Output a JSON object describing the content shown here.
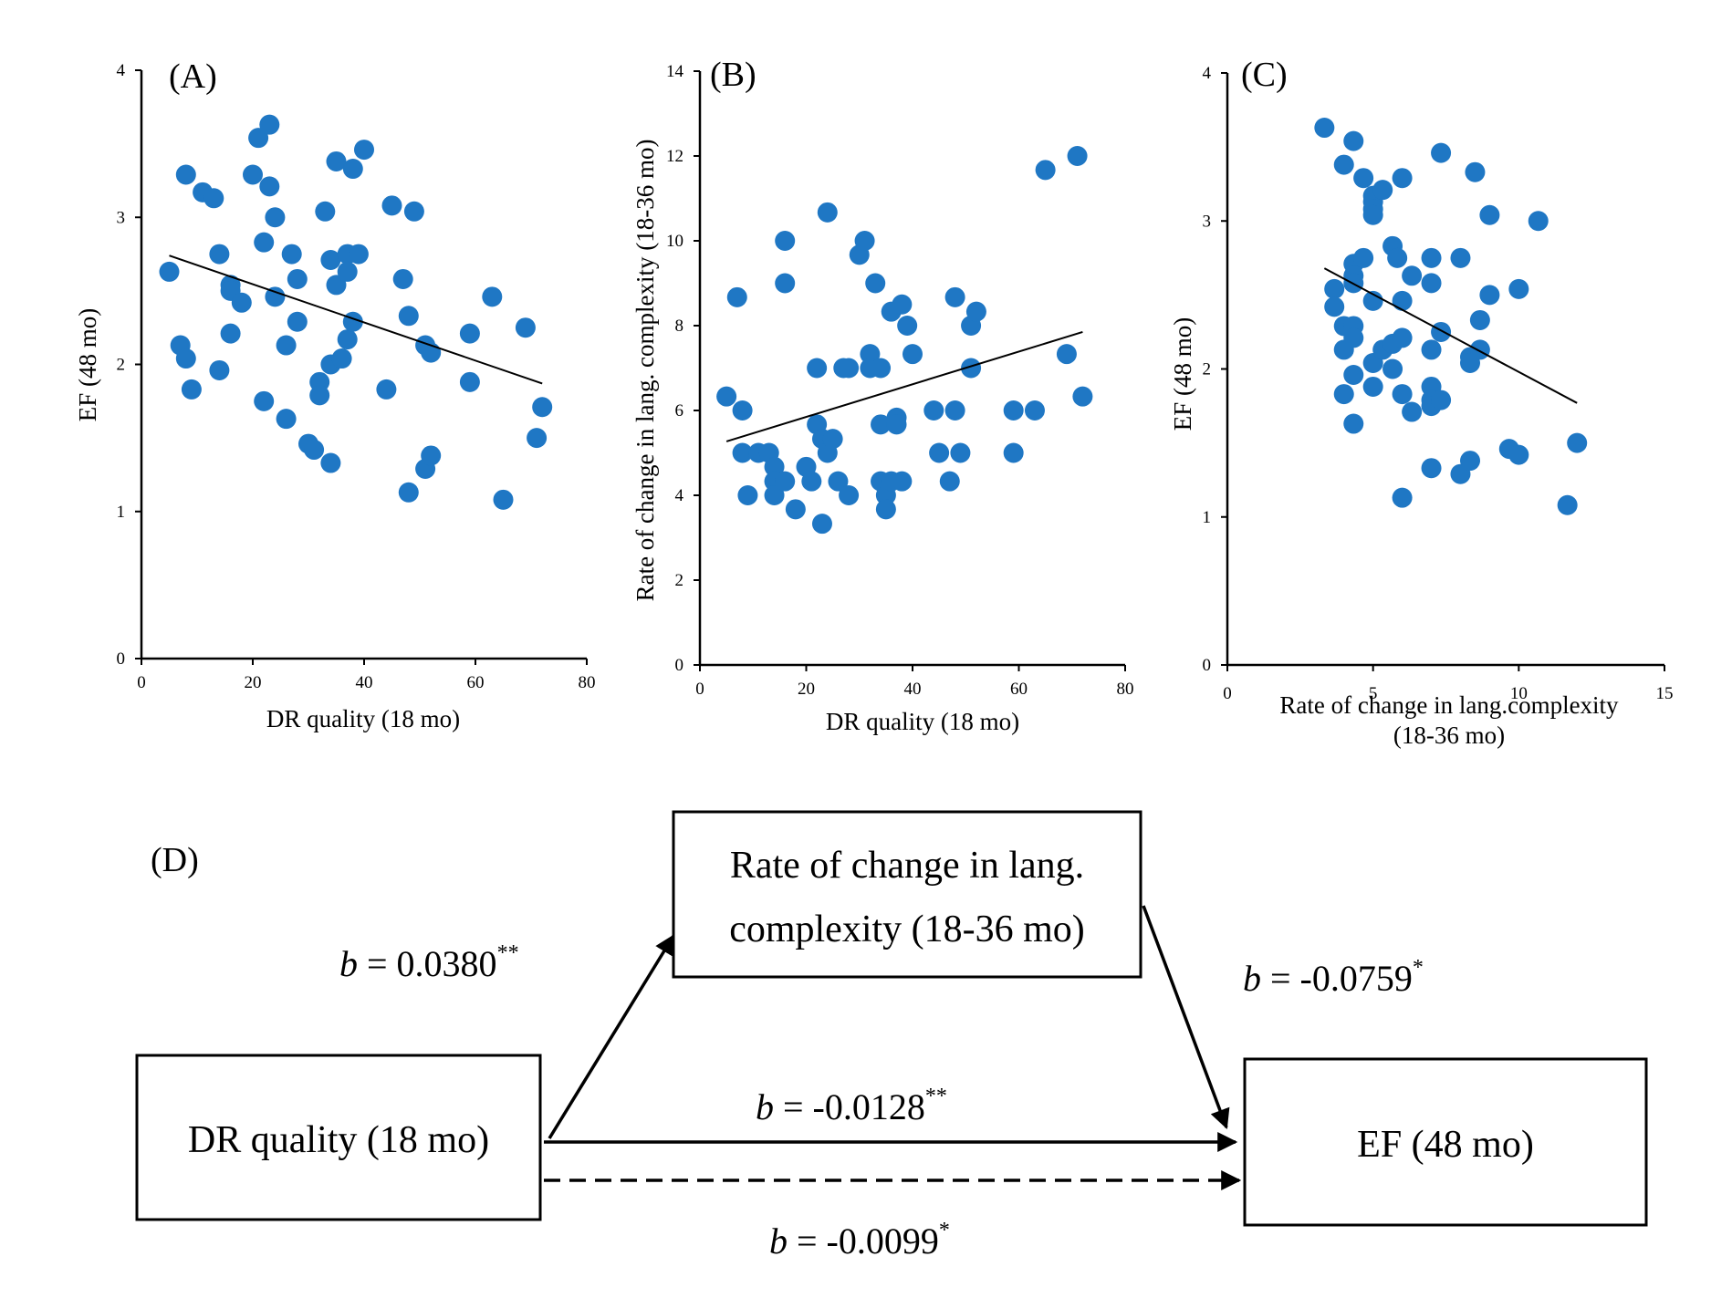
{
  "chart_data": [
    {
      "panel": "(A)",
      "type": "scatter",
      "xlabel": "DR quality (18 mo)",
      "ylabel": "EF (48 mo)",
      "xlim": [
        0,
        80
      ],
      "ylim": [
        0,
        4
      ],
      "xticks": [
        0,
        20,
        40,
        60,
        80
      ],
      "yticks": [
        0,
        1,
        2,
        3,
        4
      ],
      "grid": false,
      "point_color": "#1f77c4",
      "trendline": [
        [
          5,
          2.74
        ],
        [
          72,
          1.87
        ]
      ],
      "points": [
        [
          5,
          2.63
        ],
        [
          7,
          2.13
        ],
        [
          8,
          3.29
        ],
        [
          8,
          2.04
        ],
        [
          9,
          1.83
        ],
        [
          11,
          3.17
        ],
        [
          13,
          3.13
        ],
        [
          14,
          2.75
        ],
        [
          14,
          1.96
        ],
        [
          16,
          2.54
        ],
        [
          16,
          2.5
        ],
        [
          16,
          2.21
        ],
        [
          18,
          2.42
        ],
        [
          20,
          3.29
        ],
        [
          21,
          3.54
        ],
        [
          22,
          2.83
        ],
        [
          22,
          1.75
        ],
        [
          23,
          3.63
        ],
        [
          23,
          3.21
        ],
        [
          24,
          3.0
        ],
        [
          24,
          2.46
        ],
        [
          26,
          2.13
        ],
        [
          26,
          1.63
        ],
        [
          27,
          2.75
        ],
        [
          28,
          2.58
        ],
        [
          28,
          2.29
        ],
        [
          30,
          1.46
        ],
        [
          31,
          1.42
        ],
        [
          32,
          1.88
        ],
        [
          32,
          1.79
        ],
        [
          33,
          3.04
        ],
        [
          34,
          2.71
        ],
        [
          34,
          2.0
        ],
        [
          34,
          1.33
        ],
        [
          35,
          3.38
        ],
        [
          35,
          2.54
        ],
        [
          36,
          2.04
        ],
        [
          37,
          2.75
        ],
        [
          37,
          2.63
        ],
        [
          37,
          2.17
        ],
        [
          38,
          3.33
        ],
        [
          38,
          2.29
        ],
        [
          39,
          2.75
        ],
        [
          40,
          3.46
        ],
        [
          44,
          1.83
        ],
        [
          45,
          3.08
        ],
        [
          47,
          2.58
        ],
        [
          48,
          2.33
        ],
        [
          48,
          1.13
        ],
        [
          49,
          3.04
        ],
        [
          51,
          2.13
        ],
        [
          51,
          1.29
        ],
        [
          52,
          2.08
        ],
        [
          52,
          1.38
        ],
        [
          59,
          2.21
        ],
        [
          59,
          1.88
        ],
        [
          63,
          2.46
        ],
        [
          65,
          1.08
        ],
        [
          69,
          2.25
        ],
        [
          71,
          1.5
        ],
        [
          72,
          1.71
        ]
      ]
    },
    {
      "panel": "(B)",
      "type": "scatter",
      "xlabel": "DR quality (18 mo)",
      "ylabel": "Rate of change in lang. complexity (18-36 mo)",
      "xlim": [
        0,
        80
      ],
      "ylim": [
        0,
        14
      ],
      "xticks": [
        0,
        20,
        40,
        60,
        80
      ],
      "yticks": [
        0,
        2,
        4,
        6,
        8,
        10,
        12,
        14
      ],
      "grid": false,
      "point_color": "#1f77c4",
      "trendline": [
        [
          5,
          5.27
        ],
        [
          72,
          7.85
        ]
      ],
      "points": [
        [
          5,
          6.33
        ],
        [
          7,
          8.67
        ],
        [
          8,
          6.0
        ],
        [
          8,
          5.0
        ],
        [
          9,
          4.0
        ],
        [
          11,
          5.0
        ],
        [
          13,
          5.0
        ],
        [
          14,
          4.67
        ],
        [
          14,
          4.33
        ],
        [
          14,
          4.0
        ],
        [
          16,
          10.0
        ],
        [
          16,
          9.0
        ],
        [
          16,
          4.33
        ],
        [
          18,
          3.67
        ],
        [
          20,
          4.67
        ],
        [
          21,
          4.33
        ],
        [
          22,
          7.0
        ],
        [
          22,
          5.67
        ],
        [
          23,
          5.33
        ],
        [
          23,
          3.33
        ],
        [
          24,
          10.67
        ],
        [
          24,
          5.0
        ],
        [
          25,
          5.33
        ],
        [
          26,
          4.33
        ],
        [
          27,
          7.0
        ],
        [
          28,
          7.0
        ],
        [
          28,
          4.0
        ],
        [
          30,
          9.67
        ],
        [
          31,
          10.0
        ],
        [
          32,
          7.33
        ],
        [
          32,
          7.0
        ],
        [
          33,
          9.0
        ],
        [
          34,
          7.0
        ],
        [
          34,
          5.67
        ],
        [
          34,
          4.33
        ],
        [
          35,
          4.0
        ],
        [
          35,
          3.67
        ],
        [
          36,
          8.33
        ],
        [
          36,
          4.33
        ],
        [
          37,
          5.83
        ],
        [
          37,
          5.67
        ],
        [
          38,
          8.5
        ],
        [
          38,
          4.33
        ],
        [
          39,
          8.0
        ],
        [
          40,
          7.33
        ],
        [
          44,
          6.0
        ],
        [
          45,
          5.0
        ],
        [
          47,
          4.33
        ],
        [
          48,
          8.67
        ],
        [
          48,
          6.0
        ],
        [
          49,
          5.0
        ],
        [
          51,
          8.0
        ],
        [
          51,
          7.0
        ],
        [
          52,
          8.33
        ],
        [
          59,
          6.0
        ],
        [
          59,
          5.0
        ],
        [
          63,
          6.0
        ],
        [
          65,
          11.67
        ],
        [
          69,
          7.33
        ],
        [
          71,
          12.0
        ],
        [
          72,
          6.33
        ]
      ]
    },
    {
      "panel": "(C)",
      "type": "scatter",
      "xlabel": "Rate of change in lang.complexity (18-36 mo)",
      "ylabel": "EF (48 mo)",
      "xlim": [
        0,
        15
      ],
      "ylim": [
        0,
        4
      ],
      "xticks": [
        0,
        5,
        10,
        15
      ],
      "yticks": [
        0,
        1,
        2,
        3,
        4
      ],
      "grid": false,
      "point_color": "#1f77c4",
      "trendline": [
        [
          3.33,
          2.68
        ],
        [
          12,
          1.77
        ]
      ],
      "points": [
        [
          3.33,
          3.63
        ],
        [
          3.67,
          2.54
        ],
        [
          3.67,
          2.42
        ],
        [
          4.0,
          3.38
        ],
        [
          4.0,
          2.29
        ],
        [
          4.0,
          2.13
        ],
        [
          4.0,
          1.83
        ],
        [
          4.33,
          3.54
        ],
        [
          4.33,
          2.71
        ],
        [
          4.33,
          2.63
        ],
        [
          4.33,
          2.58
        ],
        [
          4.33,
          2.29
        ],
        [
          4.33,
          2.21
        ],
        [
          4.33,
          1.96
        ],
        [
          4.33,
          1.63
        ],
        [
          4.67,
          3.29
        ],
        [
          4.67,
          2.75
        ],
        [
          5.0,
          3.17
        ],
        [
          5.0,
          3.13
        ],
        [
          5.0,
          3.08
        ],
        [
          5.0,
          3.04
        ],
        [
          5.0,
          2.46
        ],
        [
          5.0,
          2.04
        ],
        [
          5.0,
          1.88
        ],
        [
          5.33,
          3.21
        ],
        [
          5.33,
          2.13
        ],
        [
          5.67,
          2.83
        ],
        [
          5.67,
          2.17
        ],
        [
          5.67,
          2.0
        ],
        [
          5.83,
          2.75
        ],
        [
          6.0,
          3.29
        ],
        [
          6.0,
          2.46
        ],
        [
          6.0,
          2.21
        ],
        [
          6.0,
          1.83
        ],
        [
          6.0,
          1.13
        ],
        [
          6.33,
          1.71
        ],
        [
          6.33,
          2.63
        ],
        [
          7.0,
          2.75
        ],
        [
          7.0,
          2.58
        ],
        [
          7.0,
          2.13
        ],
        [
          7.0,
          1.88
        ],
        [
          7.0,
          1.79
        ],
        [
          7.0,
          1.75
        ],
        [
          7.0,
          1.33
        ],
        [
          7.33,
          3.46
        ],
        [
          7.33,
          2.25
        ],
        [
          7.33,
          1.79
        ],
        [
          8.0,
          2.75
        ],
        [
          8.0,
          1.29
        ],
        [
          8.33,
          2.08
        ],
        [
          8.33,
          2.04
        ],
        [
          8.33,
          1.38
        ],
        [
          8.5,
          3.33
        ],
        [
          8.67,
          2.33
        ],
        [
          8.67,
          2.13
        ],
        [
          9.0,
          3.04
        ],
        [
          9.0,
          2.5
        ],
        [
          9.67,
          1.46
        ],
        [
          10.0,
          1.42
        ],
        [
          10.0,
          2.54
        ],
        [
          10.67,
          3.0
        ],
        [
          11.67,
          1.08
        ],
        [
          12.0,
          1.5
        ]
      ]
    }
  ],
  "diagram": {
    "panel": "(D)",
    "boxes": {
      "mediator_line1": "Rate of change in lang.",
      "mediator_line2": "complexity (18-36 mo)",
      "predictor": "DR quality (18 mo)",
      "outcome": "EF (48 mo)"
    },
    "paths": {
      "a": {
        "var": "b",
        "value": " = 0.0380",
        "sig": "**"
      },
      "b": {
        "var": "b",
        "value": " = -0.0759",
        "sig": "*"
      },
      "c": {
        "var": "b",
        "value": " = -0.0128",
        "sig": "**"
      },
      "c_prime": {
        "var": "b",
        "value": " = -0.0099",
        "sig": "*"
      }
    }
  }
}
